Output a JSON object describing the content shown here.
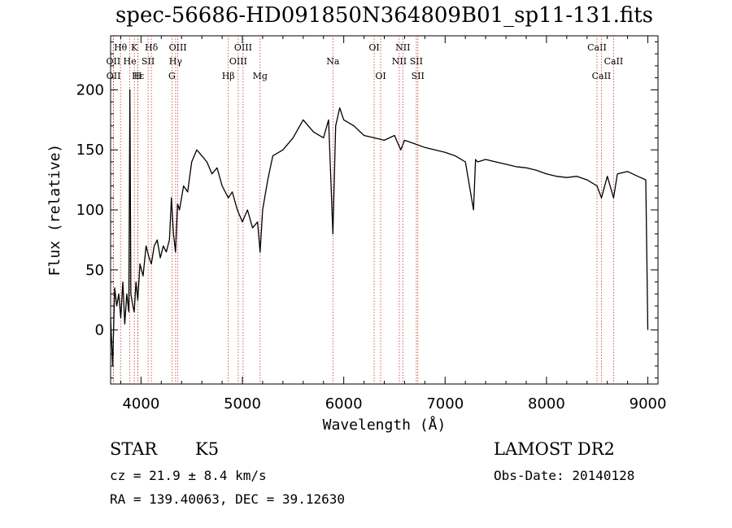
{
  "chart_data": {
    "type": "line",
    "title": "spec-56686-HD091850N364809B01_sp11-131.fits",
    "xlabel": "Wavelength (Å)",
    "ylabel": "Flux (relative)",
    "xlim": [
      3700,
      9100
    ],
    "ylim": [
      -45,
      245
    ],
    "x_ticks": [
      4000,
      5000,
      6000,
      7000,
      8000,
      9000
    ],
    "y_ticks": [
      0,
      50,
      100,
      150,
      200
    ],
    "series": [
      {
        "x": [
          3700,
          3720,
          3740,
          3760,
          3780,
          3800,
          3820,
          3840,
          3860,
          3880,
          3890,
          3900,
          3920,
          3933,
          3950,
          3968,
          3990,
          4020,
          4050,
          4080,
          4102,
          4130,
          4160,
          4190,
          4220,
          4250,
          4280,
          4300,
          4320,
          4340,
          4360,
          4380,
          4420,
          4460,
          4500,
          4550,
          4600,
          4650,
          4700,
          4750,
          4800,
          4861,
          4900,
          4950,
          5000,
          5050,
          5100,
          5150,
          5175,
          5200,
          5250,
          5300,
          5400,
          5500,
          5600,
          5700,
          5800,
          5850,
          5893,
          5920,
          5960,
          6000,
          6100,
          6200,
          6300,
          6400,
          6500,
          6563,
          6600,
          6700,
          6800,
          6900,
          7000,
          7100,
          7200,
          7280,
          7300,
          7320,
          7400,
          7500,
          7600,
          7700,
          7800,
          7900,
          8000,
          8100,
          8200,
          8300,
          8400,
          8498,
          8542,
          8600,
          8662,
          8700,
          8800,
          8900,
          8980,
          9000
        ],
        "y": [
          10,
          -30,
          35,
          20,
          30,
          10,
          40,
          5,
          30,
          15,
          200,
          30,
          20,
          15,
          40,
          25,
          55,
          45,
          70,
          60,
          55,
          70,
          75,
          60,
          70,
          65,
          75,
          110,
          80,
          65,
          105,
          100,
          120,
          115,
          140,
          150,
          145,
          140,
          130,
          135,
          120,
          110,
          115,
          100,
          90,
          100,
          85,
          90,
          65,
          100,
          125,
          145,
          150,
          160,
          175,
          165,
          160,
          175,
          80,
          170,
          185,
          175,
          170,
          162,
          160,
          158,
          162,
          150,
          158,
          155,
          152,
          150,
          148,
          145,
          140,
          100,
          142,
          140,
          142,
          140,
          138,
          136,
          135,
          133,
          130,
          128,
          127,
          128,
          125,
          120,
          110,
          128,
          110,
          130,
          132,
          128,
          125,
          0
        ]
      }
    ],
    "line_ids": [
      {
        "label": "Hθ",
        "wavelength": 3798,
        "row": 1
      },
      {
        "label": "OII",
        "wavelength": 3727,
        "row": 2
      },
      {
        "label": "OII",
        "wavelength": 3729,
        "row": 3
      },
      {
        "label": "He",
        "wavelength": 3889,
        "row": 2
      },
      {
        "label": "K",
        "wavelength": 3934,
        "row": 1
      },
      {
        "label": "H",
        "wavelength": 3969,
        "row": 3
      },
      {
        "label": "Hε",
        "wavelength": 3970,
        "row": 3
      },
      {
        "label": "SII",
        "wavelength": 4070,
        "row": 2
      },
      {
        "label": "Hδ",
        "wavelength": 4102,
        "row": 1
      },
      {
        "label": "G",
        "wavelength": 4305,
        "row": 3
      },
      {
        "label": "Hγ",
        "wavelength": 4341,
        "row": 2
      },
      {
        "label": "OIII",
        "wavelength": 4363,
        "row": 1
      },
      {
        "label": "Hβ",
        "wavelength": 4861,
        "row": 3
      },
      {
        "label": "OIII",
        "wavelength": 4959,
        "row": 2
      },
      {
        "label": "OIII",
        "wavelength": 5007,
        "row": 1
      },
      {
        "label": "Mg",
        "wavelength": 5175,
        "row": 3
      },
      {
        "label": "Na",
        "wavelength": 5893,
        "row": 2
      },
      {
        "label": "OI",
        "wavelength": 6300,
        "row": 1
      },
      {
        "label": "OI",
        "wavelength": 6364,
        "row": 3
      },
      {
        "label": "NII",
        "wavelength": 6548,
        "row": 2
      },
      {
        "label": "NII",
        "wavelength": 6583,
        "row": 1
      },
      {
        "label": "SII",
        "wavelength": 6716,
        "row": 2
      },
      {
        "label": "SII",
        "wavelength": 6731,
        "row": 3
      },
      {
        "label": "CaII",
        "wavelength": 8498,
        "row": 1
      },
      {
        "label": "CaII",
        "wavelength": 8542,
        "row": 3
      },
      {
        "label": "CaII",
        "wavelength": 8662,
        "row": 2
      }
    ]
  },
  "info": {
    "object_class": "STAR",
    "subclass": "K5",
    "survey": "LAMOST DR2",
    "cz": "cz = 21.9 ± 8.4 km/s",
    "obs_date": "Obs-Date: 20140128",
    "radec": "RA = 139.40063, DEC =  39.12630"
  }
}
